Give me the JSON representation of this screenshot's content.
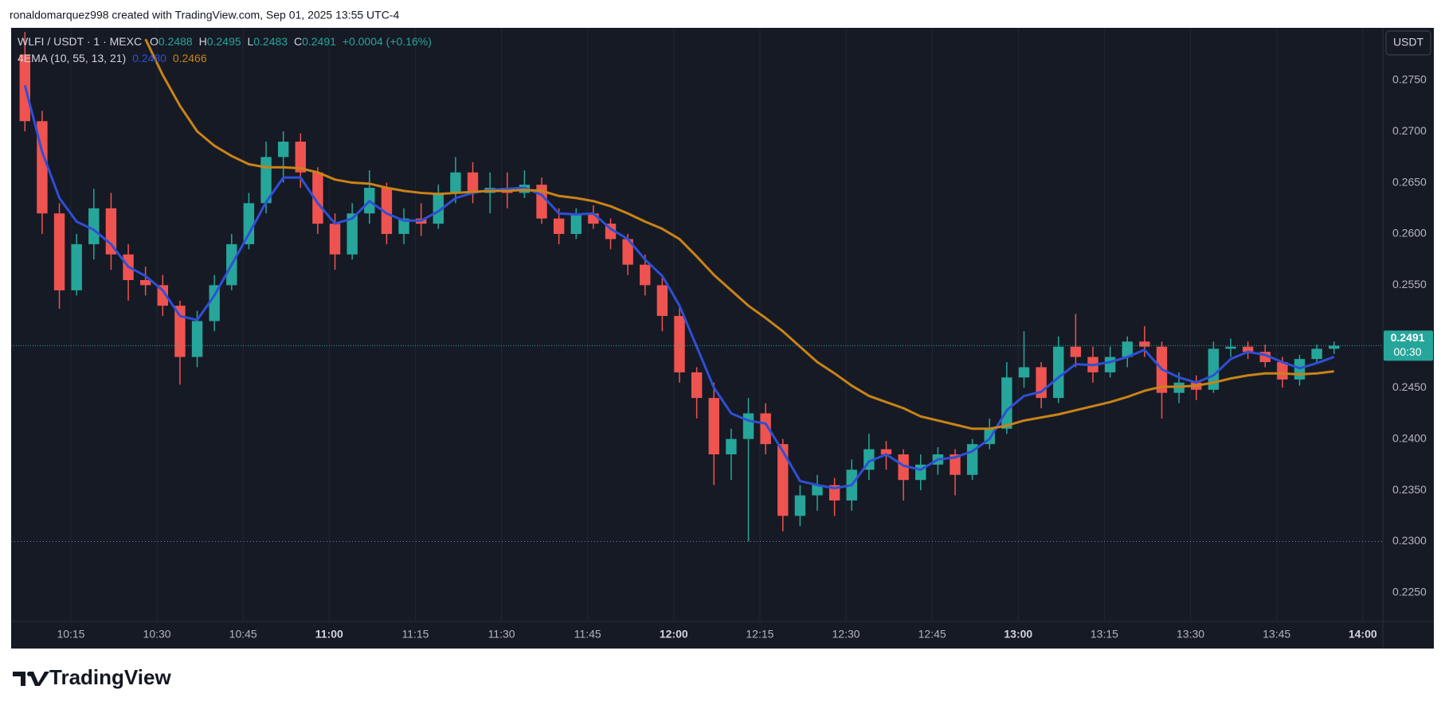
{
  "header": {
    "text": "ronaldomarquez998 created with TradingView.com, Sep 01, 2025 13:55 UTC-4"
  },
  "chart_data": {
    "type": "candlestick",
    "legend": {
      "symbol": "WLFI / USDT · 1 · MEXC",
      "o_label": "O",
      "open": "0.2488",
      "h_label": "H",
      "high": "0.2495",
      "l_label": "L",
      "low": "0.2483",
      "c_label": "C",
      "close": "0.2491",
      "change": "+0.0004 (+0.16%)"
    },
    "indicator": {
      "label": "4EMA (10, 55, 13, 21)"
    },
    "currency_button": "USDT",
    "up_color": "#26a69a",
    "down_color": "#ef5350",
    "x": [
      "10:07",
      "10:10",
      "10:13",
      "10:16",
      "10:19",
      "10:22",
      "10:25",
      "10:28",
      "10:31",
      "10:34",
      "10:37",
      "10:40",
      "10:43",
      "10:46",
      "10:49",
      "10:52",
      "10:55",
      "10:58",
      "11:01",
      "11:04",
      "11:07",
      "11:10",
      "11:13",
      "11:16",
      "11:19",
      "11:22",
      "11:25",
      "11:28",
      "11:31",
      "11:34",
      "11:37",
      "11:40",
      "11:43",
      "11:46",
      "11:49",
      "11:52",
      "11:55",
      "11:58",
      "12:01",
      "12:04",
      "12:07",
      "12:10",
      "12:13",
      "12:16",
      "12:19",
      "12:22",
      "12:25",
      "12:28",
      "12:31",
      "12:34",
      "12:37",
      "12:40",
      "12:43",
      "12:46",
      "12:49",
      "12:52",
      "12:55",
      "12:58",
      "13:01",
      "13:04",
      "13:07",
      "13:10",
      "13:13",
      "13:16",
      "13:19",
      "13:22",
      "13:25",
      "13:28",
      "13:31",
      "13:34",
      "13:37",
      "13:40",
      "13:43",
      "13:46",
      "13:49",
      "13:52",
      "13:55"
    ],
    "open": [
      0.2775,
      0.271,
      0.262,
      0.2545,
      0.259,
      0.2625,
      0.258,
      0.2555,
      0.255,
      0.253,
      0.248,
      0.2515,
      0.255,
      0.259,
      0.263,
      0.2675,
      0.269,
      0.266,
      0.261,
      0.258,
      0.262,
      0.2645,
      0.26,
      0.2615,
      0.261,
      0.264,
      0.266,
      0.264,
      0.2645,
      0.264,
      0.2648,
      0.2615,
      0.26,
      0.262,
      0.261,
      0.2595,
      0.257,
      0.255,
      0.252,
      0.2465,
      0.244,
      0.2385,
      0.24,
      0.2425,
      0.2395,
      0.2325,
      0.2345,
      0.2355,
      0.234,
      0.237,
      0.239,
      0.2385,
      0.236,
      0.2375,
      0.2385,
      0.2365,
      0.2395,
      0.241,
      0.246,
      0.247,
      0.244,
      0.249,
      0.248,
      0.2465,
      0.248,
      0.2495,
      0.249,
      0.2445,
      0.2455,
      0.2448,
      0.2488,
      0.249,
      0.2485,
      0.2475,
      0.2458,
      0.2478,
      0.2488
    ],
    "high": [
      0.2797,
      0.272,
      0.263,
      0.26,
      0.2644,
      0.264,
      0.259,
      0.2568,
      0.256,
      0.2535,
      0.2525,
      0.256,
      0.26,
      0.264,
      0.269,
      0.27,
      0.2698,
      0.2665,
      0.262,
      0.263,
      0.2662,
      0.265,
      0.2625,
      0.263,
      0.2648,
      0.2675,
      0.267,
      0.266,
      0.266,
      0.2662,
      0.2655,
      0.2625,
      0.2625,
      0.2628,
      0.2615,
      0.26,
      0.258,
      0.2558,
      0.253,
      0.247,
      0.2455,
      0.241,
      0.244,
      0.2435,
      0.24,
      0.2355,
      0.2365,
      0.2362,
      0.238,
      0.2405,
      0.2398,
      0.239,
      0.2385,
      0.2392,
      0.239,
      0.24,
      0.242,
      0.2475,
      0.2505,
      0.2475,
      0.25,
      0.2522,
      0.249,
      0.249,
      0.25,
      0.251,
      0.2495,
      0.2465,
      0.2462,
      0.2495,
      0.2498,
      0.2495,
      0.2492,
      0.248,
      0.2482,
      0.2492,
      0.2495
    ],
    "low": [
      0.27,
      0.26,
      0.2527,
      0.254,
      0.2575,
      0.2565,
      0.2535,
      0.254,
      0.252,
      0.2453,
      0.247,
      0.2505,
      0.2545,
      0.2585,
      0.262,
      0.265,
      0.2645,
      0.26,
      0.2565,
      0.2575,
      0.261,
      0.259,
      0.259,
      0.2598,
      0.2605,
      0.263,
      0.263,
      0.262,
      0.2625,
      0.2635,
      0.261,
      0.259,
      0.2595,
      0.2605,
      0.2585,
      0.256,
      0.254,
      0.2505,
      0.2455,
      0.242,
      0.2355,
      0.236,
      0.23,
      0.2385,
      0.231,
      0.2315,
      0.233,
      0.2325,
      0.233,
      0.236,
      0.237,
      0.234,
      0.235,
      0.2365,
      0.2345,
      0.236,
      0.239,
      0.2405,
      0.245,
      0.243,
      0.2435,
      0.247,
      0.2455,
      0.246,
      0.247,
      0.248,
      0.242,
      0.2435,
      0.2438,
      0.2445,
      0.248,
      0.2478,
      0.247,
      0.245,
      0.2452,
      0.2475,
      0.2483
    ],
    "close": [
      0.271,
      0.262,
      0.2545,
      0.259,
      0.2625,
      0.258,
      0.2555,
      0.255,
      0.253,
      0.248,
      0.2515,
      0.255,
      0.259,
      0.263,
      0.2675,
      0.269,
      0.266,
      0.261,
      0.258,
      0.262,
      0.2645,
      0.26,
      0.2615,
      0.261,
      0.264,
      0.266,
      0.264,
      0.2645,
      0.264,
      0.2648,
      0.2615,
      0.26,
      0.262,
      0.261,
      0.2595,
      0.257,
      0.255,
      0.252,
      0.2465,
      0.244,
      0.2385,
      0.24,
      0.2425,
      0.2395,
      0.2325,
      0.2345,
      0.2355,
      0.234,
      0.237,
      0.239,
      0.2385,
      0.236,
      0.2375,
      0.2385,
      0.2365,
      0.2395,
      0.241,
      0.246,
      0.247,
      0.244,
      0.249,
      0.248,
      0.2465,
      0.248,
      0.2495,
      0.249,
      0.2445,
      0.2455,
      0.2448,
      0.2488,
      0.249,
      0.2485,
      0.2475,
      0.2458,
      0.2478,
      0.2488,
      0.2491
    ],
    "series": [
      {
        "color": "#2f4fd6",
        "last_label": "0.2480",
        "values": [
          0.2745,
          0.268,
          0.2635,
          0.2612,
          0.2604,
          0.259,
          0.2568,
          0.2559,
          0.2545,
          0.252,
          0.2516,
          0.254,
          0.257,
          0.26,
          0.2631,
          0.2655,
          0.2655,
          0.263,
          0.261,
          0.2615,
          0.2632,
          0.262,
          0.2613,
          0.2613,
          0.2622,
          0.2635,
          0.264,
          0.2643,
          0.2644,
          0.2645,
          0.2638,
          0.262,
          0.2619,
          0.262,
          0.2605,
          0.2595,
          0.2575,
          0.2559,
          0.253,
          0.249,
          0.245,
          0.2425,
          0.2418,
          0.2415,
          0.2388,
          0.2359,
          0.2355,
          0.2352,
          0.2355,
          0.2378,
          0.2385,
          0.2374,
          0.237,
          0.238,
          0.2382,
          0.2388,
          0.24,
          0.2428,
          0.2442,
          0.2446,
          0.246,
          0.2473,
          0.2472,
          0.2475,
          0.248,
          0.2487,
          0.2468,
          0.246,
          0.2455,
          0.2462,
          0.2478,
          0.2485,
          0.2482,
          0.2475,
          0.2469,
          0.2474,
          0.248
        ]
      },
      {
        "color": "#c98316",
        "last_label": "0.2466",
        "values": [
          null,
          null,
          null,
          null,
          null,
          null,
          null,
          0.279,
          0.2755,
          0.2725,
          0.27,
          0.2686,
          0.2676,
          0.2668,
          0.2665,
          0.2665,
          0.2664,
          0.266,
          0.2653,
          0.265,
          0.2649,
          0.2645,
          0.2642,
          0.264,
          0.2639,
          0.264,
          0.2641,
          0.2642,
          0.2642,
          0.2643,
          0.2642,
          0.2637,
          0.2635,
          0.2632,
          0.2627,
          0.262,
          0.2612,
          0.2605,
          0.2595,
          0.2578,
          0.256,
          0.2545,
          0.253,
          0.2518,
          0.2505,
          0.249,
          0.2475,
          0.2464,
          0.2452,
          0.2442,
          0.2436,
          0.243,
          0.2422,
          0.2418,
          0.2414,
          0.241,
          0.241,
          0.2413,
          0.2418,
          0.2421,
          0.2424,
          0.2428,
          0.2432,
          0.2436,
          0.2441,
          0.2447,
          0.2451,
          0.2451,
          0.2452,
          0.2455,
          0.2459,
          0.2462,
          0.2464,
          0.2464,
          0.2463,
          0.2464,
          0.2466
        ]
      }
    ],
    "price_line": {
      "value": 0.2491,
      "label": "0.2491",
      "countdown": "00:30",
      "color": "#26a69a"
    },
    "hline": 0.23,
    "xlim": [
      "10:04:36",
      "14:03:30"
    ],
    "xticks": [
      "10:15",
      "10:30",
      "10:45",
      "11:00",
      "11:15",
      "11:30",
      "11:45",
      "12:00",
      "12:15",
      "12:30",
      "12:45",
      "13:00",
      "13:15",
      "13:30",
      "13:45",
      "14:00"
    ],
    "ylim": [
      0.2222,
      0.2801
    ],
    "yticks": [
      {
        "value": 0.225,
        "label": "0.2250"
      },
      {
        "value": 0.23,
        "label": "0.2300"
      },
      {
        "value": 0.235,
        "label": "0.2350"
      },
      {
        "value": 0.24,
        "label": "0.2400"
      },
      {
        "value": 0.245,
        "label": "0.2450"
      },
      {
        "value": 0.25,
        "label": "0.2500"
      },
      {
        "value": 0.255,
        "label": "0.2550"
      },
      {
        "value": 0.26,
        "label": "0.2600"
      },
      {
        "value": 0.265,
        "label": "0.2650"
      },
      {
        "value": 0.27,
        "label": "0.2700"
      },
      {
        "value": 0.275,
        "label": "0.2750"
      }
    ],
    "grid": true
  },
  "footer": {
    "logo": "TradingView"
  }
}
